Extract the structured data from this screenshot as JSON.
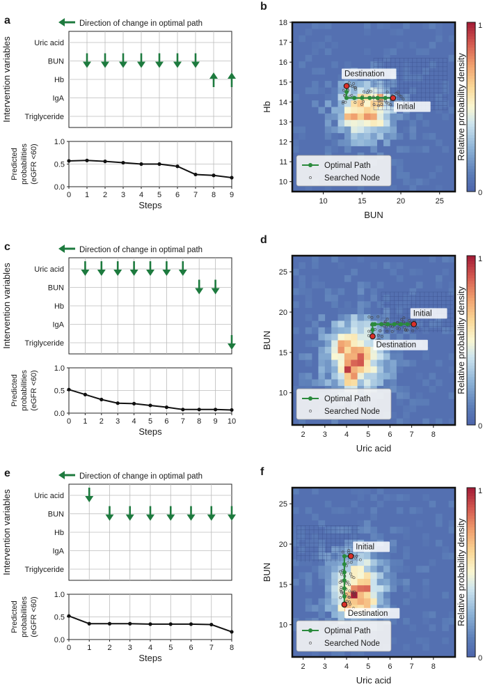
{
  "figure": {
    "panels_letters": [
      "a",
      "b",
      "c",
      "d",
      "e",
      "f"
    ]
  },
  "chart_data": [
    {
      "id": "a",
      "type": "arrow-grid",
      "legend": "Direction of change in optimal path",
      "ylabel": "Intervention variables",
      "variables": [
        "Uric acid",
        "BUN",
        "Hb",
        "IgA",
        "Triglyceride"
      ],
      "steps": [
        0,
        1,
        2,
        3,
        4,
        5,
        6,
        7,
        8,
        9
      ],
      "arrows": [
        {
          "step": 1,
          "variable": "BUN",
          "dir": "down"
        },
        {
          "step": 2,
          "variable": "BUN",
          "dir": "down"
        },
        {
          "step": 3,
          "variable": "BUN",
          "dir": "down"
        },
        {
          "step": 4,
          "variable": "BUN",
          "dir": "down"
        },
        {
          "step": 5,
          "variable": "BUN",
          "dir": "down"
        },
        {
          "step": 6,
          "variable": "BUN",
          "dir": "down"
        },
        {
          "step": 7,
          "variable": "BUN",
          "dir": "down"
        },
        {
          "step": 8,
          "variable": "Hb",
          "dir": "up"
        },
        {
          "step": 9,
          "variable": "Hb",
          "dir": "up"
        }
      ],
      "line": {
        "type": "line",
        "ylabel_lines": [
          "Predicted",
          "probabilities",
          "(eGFR <60)"
        ],
        "xlabel": "Steps",
        "x": [
          0,
          1,
          2,
          3,
          4,
          5,
          6,
          7,
          8,
          9
        ],
        "values": [
          0.57,
          0.58,
          0.56,
          0.53,
          0.5,
          0.5,
          0.45,
          0.27,
          0.25,
          0.2
        ],
        "ylim": [
          0,
          1.0
        ],
        "yticks": [
          "0.0",
          "0.5",
          "1.0"
        ]
      }
    },
    {
      "id": "b",
      "type": "heatmap",
      "xlabel": "BUN",
      "ylabel": "Hb",
      "xlim": [
        6,
        27
      ],
      "ylim": [
        9.5,
        18
      ],
      "xticks": [
        10,
        15,
        20,
        25
      ],
      "yticks": [
        10,
        11,
        12,
        13,
        14,
        15,
        16,
        17,
        18
      ],
      "density_center": [
        15.5,
        13.6
      ],
      "density_spread": [
        3.5,
        1.4
      ],
      "hotspots": [
        [
          13.5,
          13.2
        ],
        [
          16.2,
          13.2
        ],
        [
          17.5,
          14.3
        ]
      ],
      "searched_region": [
        [
          16.5,
          26
        ],
        [
          13.6,
          16.2
        ]
      ],
      "path": [
        [
          19,
          14.2
        ],
        [
          18,
          14.2
        ],
        [
          17,
          14.2
        ],
        [
          16,
          14.2
        ],
        [
          15,
          14.2
        ],
        [
          14,
          14.2
        ],
        [
          13,
          14.2
        ],
        [
          13,
          14.5
        ],
        [
          13,
          14.8
        ]
      ],
      "initial": [
        19,
        14.2
      ],
      "destination": [
        13,
        14.8
      ],
      "labels": {
        "initial": "Initial",
        "destination": "Destination"
      },
      "legend": [
        "Optimal Path",
        "Searched Node"
      ],
      "colorbar": {
        "label": "Relative probability density",
        "min": "0",
        "max": "1"
      }
    },
    {
      "id": "c",
      "type": "arrow-grid",
      "legend": "Direction of change in optimal path",
      "ylabel": "Intervention variables",
      "variables": [
        "Uric acid",
        "BUN",
        "Hb",
        "IgA",
        "Triglyceride"
      ],
      "steps": [
        0,
        1,
        2,
        3,
        4,
        5,
        6,
        7,
        8,
        9,
        10
      ],
      "arrows": [
        {
          "step": 1,
          "variable": "Uric acid",
          "dir": "down"
        },
        {
          "step": 2,
          "variable": "Uric acid",
          "dir": "down"
        },
        {
          "step": 3,
          "variable": "Uric acid",
          "dir": "down"
        },
        {
          "step": 4,
          "variable": "Uric acid",
          "dir": "down"
        },
        {
          "step": 5,
          "variable": "Uric acid",
          "dir": "down"
        },
        {
          "step": 6,
          "variable": "Uric acid",
          "dir": "down"
        },
        {
          "step": 7,
          "variable": "Uric acid",
          "dir": "down"
        },
        {
          "step": 8,
          "variable": "BUN",
          "dir": "down"
        },
        {
          "step": 9,
          "variable": "BUN",
          "dir": "down"
        },
        {
          "step": 10,
          "variable": "Triglyceride",
          "dir": "down"
        }
      ],
      "line": {
        "type": "line",
        "ylabel_lines": [
          "Predicted",
          "probabilities",
          "(eGFR <60)"
        ],
        "xlabel": "Steps",
        "x": [
          0,
          1,
          2,
          3,
          4,
          5,
          6,
          7,
          8,
          9,
          10
        ],
        "values": [
          0.52,
          0.41,
          0.3,
          0.22,
          0.21,
          0.17,
          0.13,
          0.08,
          0.08,
          0.08,
          0.07
        ],
        "ylim": [
          0,
          1.0
        ],
        "yticks": [
          "0.0",
          "0.5",
          "1.0"
        ]
      }
    },
    {
      "id": "d",
      "type": "heatmap",
      "xlabel": "Uric acid",
      "ylabel": "BUN",
      "xlim": [
        1.5,
        9.0
      ],
      "ylim": [
        6,
        27
      ],
      "xticks": [
        2,
        3,
        4,
        5,
        6,
        7,
        8
      ],
      "yticks": [
        10,
        15,
        20,
        25
      ],
      "density_center": [
        4.4,
        14.5
      ],
      "density_spread": [
        1.3,
        4.5
      ],
      "hotspots": [
        [
          4.0,
          13.0
        ],
        [
          4.5,
          14.0
        ],
        [
          3.7,
          16.0
        ],
        [
          4.2,
          11.5
        ]
      ],
      "searched_region": [
        [
          5.6,
          8.9
        ],
        [
          17.5,
          22.5
        ]
      ],
      "path": [
        [
          7.1,
          18.5
        ],
        [
          6.8,
          18.5
        ],
        [
          6.5,
          18.5
        ],
        [
          6.2,
          18.5
        ],
        [
          5.9,
          18.5
        ],
        [
          5.6,
          18.5
        ],
        [
          5.3,
          18.5
        ],
        [
          5.2,
          18.5
        ],
        [
          5.2,
          17.8
        ],
        [
          5.2,
          17.0
        ]
      ],
      "initial": [
        7.1,
        18.5
      ],
      "destination": [
        5.2,
        17.0
      ],
      "labels": {
        "initial": "Initial",
        "destination": "Destination"
      },
      "legend": [
        "Optimal Path",
        "Searched Node"
      ],
      "colorbar": {
        "label": "Relative probability density",
        "min": "0",
        "max": "1"
      }
    },
    {
      "id": "e",
      "type": "arrow-grid",
      "legend": "Direction of change in optimal path",
      "ylabel": "Intervention variables",
      "variables": [
        "Uric acid",
        "BUN",
        "Hb",
        "IgA",
        "Triglyceride"
      ],
      "steps": [
        0,
        1,
        2,
        3,
        4,
        5,
        6,
        7,
        8
      ],
      "arrows": [
        {
          "step": 1,
          "variable": "Uric acid",
          "dir": "down"
        },
        {
          "step": 2,
          "variable": "BUN",
          "dir": "down"
        },
        {
          "step": 3,
          "variable": "BUN",
          "dir": "down"
        },
        {
          "step": 4,
          "variable": "BUN",
          "dir": "down"
        },
        {
          "step": 5,
          "variable": "BUN",
          "dir": "down"
        },
        {
          "step": 6,
          "variable": "BUN",
          "dir": "down"
        },
        {
          "step": 7,
          "variable": "BUN",
          "dir": "down"
        },
        {
          "step": 8,
          "variable": "BUN",
          "dir": "down"
        }
      ],
      "line": {
        "type": "line",
        "ylabel_lines": [
          "Predicted",
          "probabilities",
          "(eGFR <60)"
        ],
        "xlabel": "Steps",
        "x": [
          0,
          1,
          2,
          3,
          4,
          5,
          6,
          7,
          8
        ],
        "values": [
          0.52,
          0.35,
          0.35,
          0.35,
          0.34,
          0.34,
          0.34,
          0.33,
          0.17
        ],
        "ylim": [
          0,
          1.0
        ],
        "yticks": [
          "0.0",
          "0.5",
          "1.0"
        ]
      }
    },
    {
      "id": "f",
      "type": "heatmap",
      "xlabel": "Uric acid",
      "ylabel": "BUN",
      "xlim": [
        1.5,
        9.0
      ],
      "ylim": [
        6,
        27
      ],
      "xticks": [
        2,
        3,
        4,
        5,
        6,
        7,
        8
      ],
      "yticks": [
        10,
        15,
        20,
        25
      ],
      "density_center": [
        4.5,
        14.5
      ],
      "density_spread": [
        1.2,
        4.3
      ],
      "hotspots": [
        [
          4.3,
          13.5
        ],
        [
          4.8,
          14.5
        ],
        [
          4.0,
          12.0
        ],
        [
          5.0,
          12.5
        ]
      ],
      "searched_region": [
        [
          1.7,
          4.6
        ],
        [
          17.8,
          22.3
        ]
      ],
      "path": [
        [
          4.2,
          18.5
        ],
        [
          3.9,
          18.5
        ],
        [
          3.9,
          17.5
        ],
        [
          3.9,
          16.5
        ],
        [
          3.9,
          15.5
        ],
        [
          3.9,
          14.5
        ],
        [
          3.9,
          13.5
        ],
        [
          3.9,
          12.5
        ]
      ],
      "initial": [
        4.2,
        18.5
      ],
      "destination": [
        3.9,
        12.5
      ],
      "labels": {
        "initial": "Initial",
        "destination": "Destination"
      },
      "legend": [
        "Optimal Path",
        "Searched Node"
      ],
      "colorbar": {
        "label": "Relative probability density",
        "min": "0",
        "max": "1"
      }
    }
  ],
  "colors": {
    "arrow": "#1d7a3e",
    "path": "#2a8a3c",
    "line": "#111111",
    "grid": "#bbbbbb",
    "marker_red": "#d9302a"
  }
}
